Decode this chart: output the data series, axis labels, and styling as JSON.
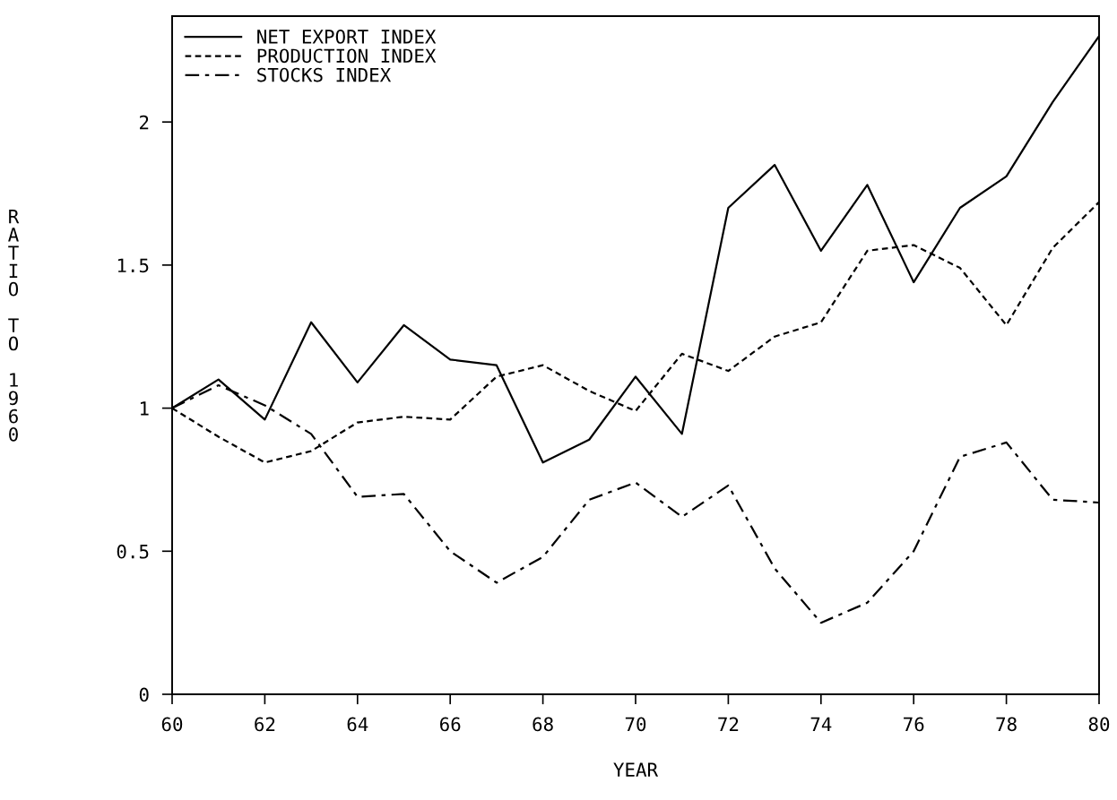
{
  "chart_data": {
    "type": "line",
    "xlabel": "YEAR",
    "ylabel": "RATIO TO 1960",
    "x": [
      60,
      61,
      62,
      63,
      64,
      65,
      66,
      67,
      68,
      69,
      70,
      71,
      72,
      73,
      74,
      75,
      76,
      77,
      78,
      79,
      80
    ],
    "series": [
      {
        "name": "NET EXPORT INDEX",
        "color": "#000000",
        "line_style": "solid",
        "values": [
          1.0,
          1.1,
          0.96,
          1.3,
          1.09,
          1.29,
          1.17,
          1.15,
          0.81,
          0.89,
          1.11,
          0.91,
          1.7,
          1.85,
          1.55,
          1.78,
          1.44,
          1.7,
          1.81,
          2.07,
          2.3
        ]
      },
      {
        "name": "PRODUCTION INDEX",
        "color": "#000000",
        "line_style": "dotted",
        "values": [
          1.0,
          0.9,
          0.81,
          0.85,
          0.95,
          0.97,
          0.96,
          1.11,
          1.15,
          1.06,
          0.99,
          1.19,
          1.13,
          1.25,
          1.3,
          1.55,
          1.57,
          1.49,
          1.29,
          1.56,
          1.72
        ]
      },
      {
        "name": "STOCKS INDEX",
        "color": "#000000",
        "line_style": "dashed",
        "values": [
          1.0,
          1.08,
          1.01,
          0.91,
          0.69,
          0.7,
          0.5,
          0.39,
          0.48,
          0.68,
          0.74,
          0.62,
          0.73,
          0.44,
          0.25,
          0.32,
          0.5,
          0.83,
          0.88,
          0.68,
          0.67
        ]
      }
    ],
    "xlim": [
      60,
      80
    ],
    "xticks": [
      60,
      62,
      64,
      66,
      68,
      70,
      72,
      74,
      76,
      78,
      80
    ],
    "ylim": [
      0,
      2.37
    ],
    "yticks": [
      0,
      {
        "value": 0.5,
        "label": "0.5"
      },
      1,
      {
        "value": 1.5,
        "label": "1.5"
      },
      2
    ],
    "grid": false,
    "legend": "top left",
    "marker": "none"
  }
}
